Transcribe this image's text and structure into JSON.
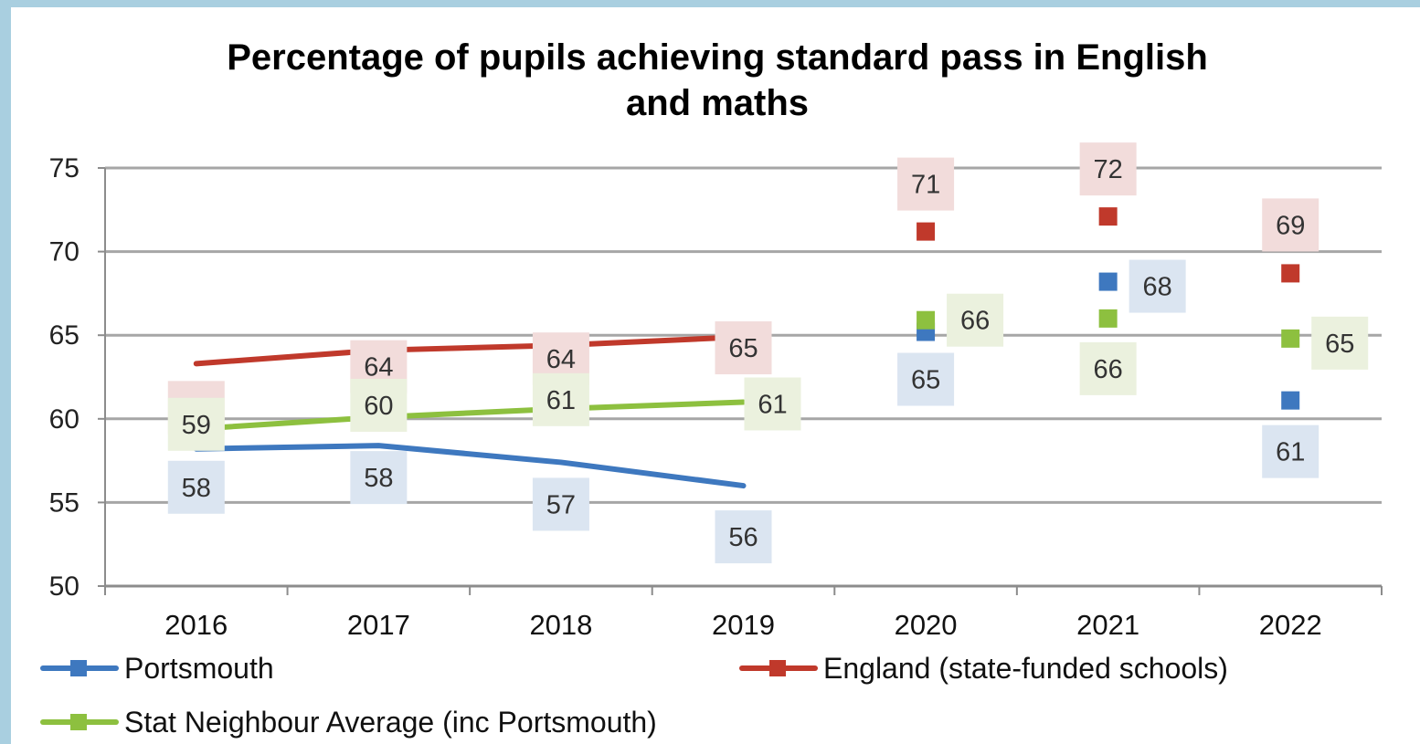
{
  "chart_data": {
    "type": "line",
    "title_lines": [
      "Percentage of pupils achieving standard pass in English",
      "and maths"
    ],
    "categories": [
      "2016",
      "2017",
      "2018",
      "2019",
      "2020",
      "2021",
      "2022"
    ],
    "ylim": [
      50,
      75
    ],
    "yticks": [
      50,
      55,
      60,
      65,
      70,
      75
    ],
    "grid": true,
    "legend_placement": "bottom",
    "series": [
      {
        "name": "Portsmouth",
        "color": "#3e78bf",
        "label_bg": "#dbe5f1",
        "values": [
          58.2,
          58.4,
          57.4,
          56.0,
          65.2,
          68.2,
          61.1
        ],
        "labels": [
          "58",
          "58",
          "57",
          "56",
          "65",
          "68",
          "61"
        ],
        "line_until_index": 3
      },
      {
        "name": "England (state-funded schools)",
        "color": "#c0392b",
        "label_bg": "#f2dcdb",
        "values": [
          63.3,
          64.1,
          64.4,
          64.9,
          71.2,
          72.1,
          68.7
        ],
        "labels": [
          "63",
          "64",
          "64",
          "65",
          "71",
          "72",
          "69"
        ],
        "line_until_index": 3
      },
      {
        "name": "Stat Neighbour Average (inc Portsmouth)",
        "color": "#8dc03f",
        "label_bg": "#ebf1de",
        "values": [
          59.4,
          60.1,
          60.6,
          61.0,
          65.9,
          66.0,
          64.8
        ],
        "labels": [
          "59",
          "60",
          "61",
          "61",
          "66",
          "66",
          "65"
        ],
        "line_until_index": 3
      }
    ]
  }
}
